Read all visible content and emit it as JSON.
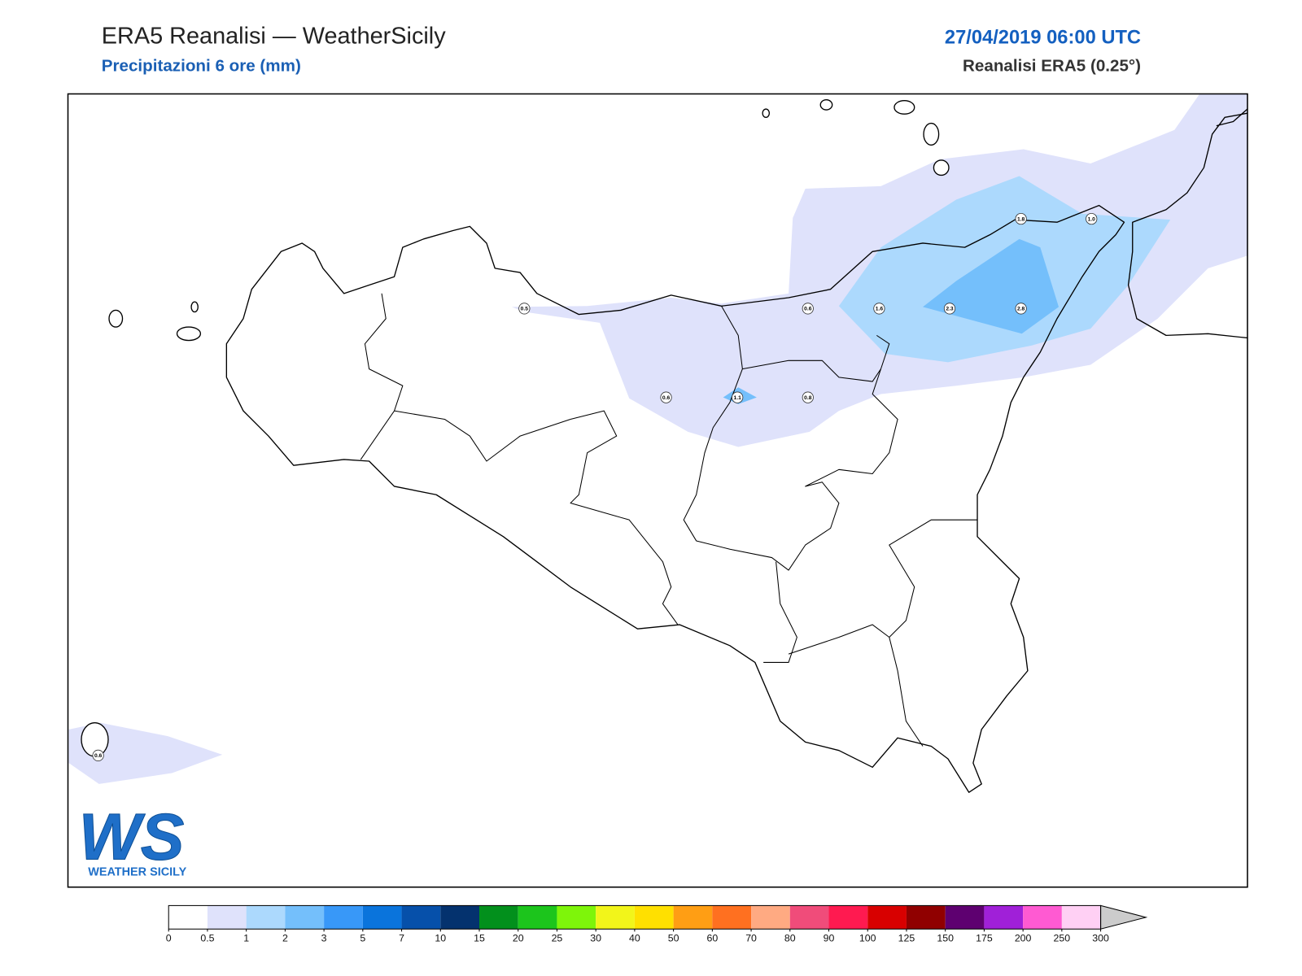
{
  "header": {
    "title": "ERA5 Reanalisi — WeatherSicily",
    "subtitle": "Precipitazioni 6 ore (mm)",
    "datetime": "27/04/2019 06:00 UTC",
    "source": "Reanalisi ERA5 (0.25°)"
  },
  "map": {
    "station_values": [
      "0.5",
      "0.6",
      "1.6",
      "2.3",
      "2.8",
      "1.8",
      "1.0",
      "0.6",
      "1.1",
      "0.8",
      "0.6"
    ]
  },
  "colorbar": {
    "ticks": [
      0,
      0.5,
      1,
      2,
      3,
      5,
      7,
      10,
      15,
      20,
      25,
      30,
      40,
      50,
      60,
      70,
      80,
      90,
      100,
      125,
      150,
      175,
      200,
      250,
      300
    ],
    "colors": [
      "#ffffff",
      "#dfe2fb",
      "#acd9fd",
      "#74bffb",
      "#3898f8",
      "#0a74dc",
      "#0650aa",
      "#04326e",
      "#02901c",
      "#1cc51c",
      "#7ef50a",
      "#f2f51a",
      "#ffe000",
      "#ff9e14",
      "#ff7020",
      "#ffaa82",
      "#f04c7a",
      "#ff1a50",
      "#d80000",
      "#900000",
      "#5e0070",
      "#a020d8",
      "#ff5ad2",
      "#ffd0f4"
    ],
    "extend_color": "#cccccc"
  },
  "logo": {
    "mark": "WS",
    "name": "WEATHER SICILY"
  }
}
